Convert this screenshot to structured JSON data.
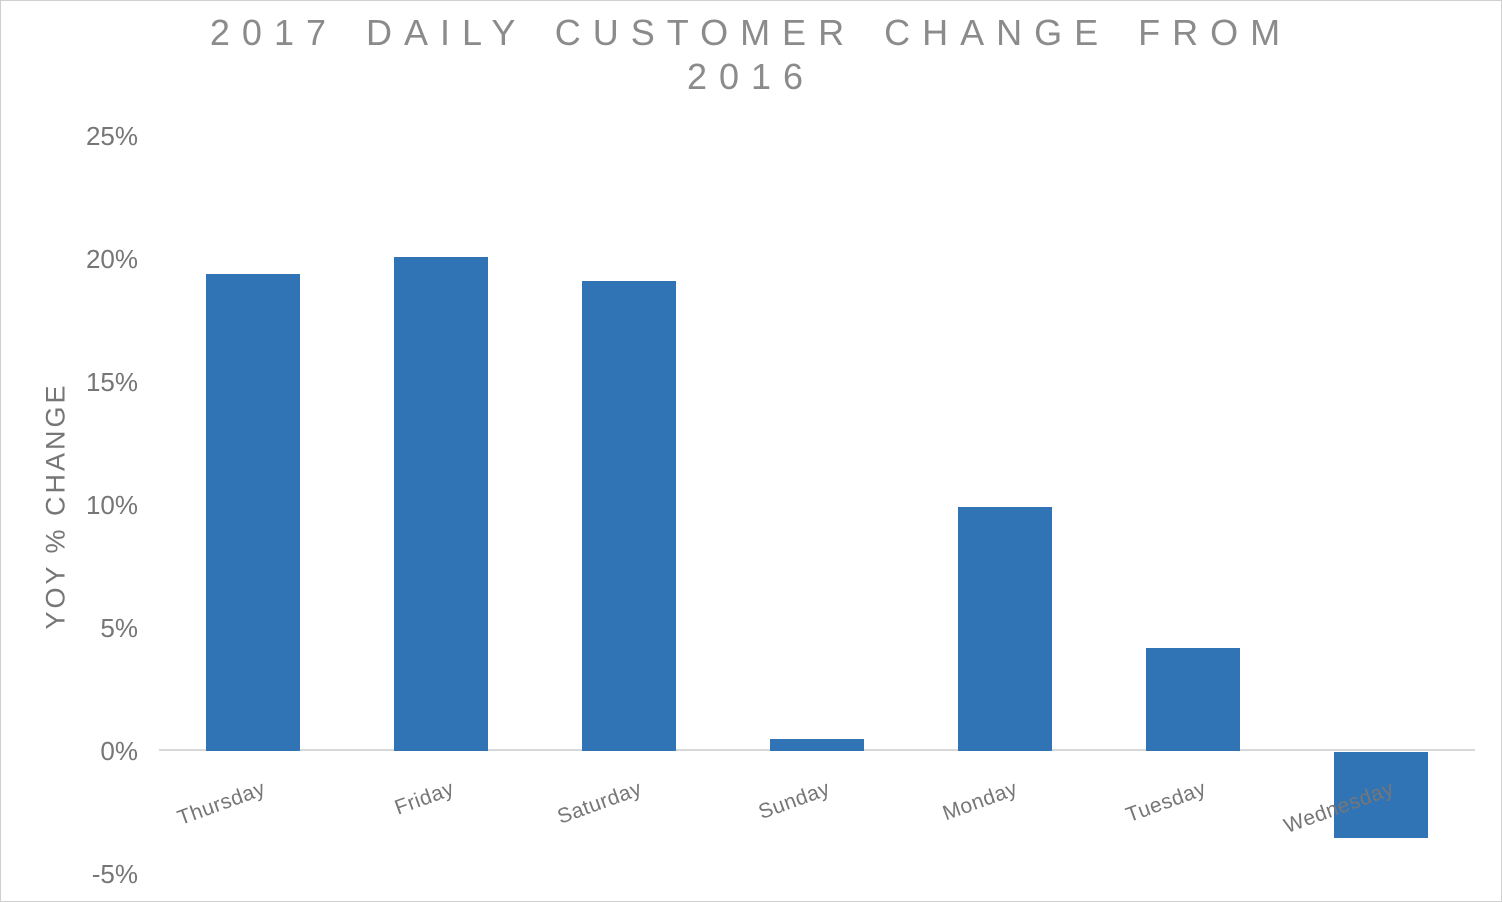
{
  "chart_data": {
    "type": "bar",
    "title": "2017 DAILY CUSTOMER CHANGE FROM 2016",
    "title_lines": [
      "2017 DAILY CUSTOMER CHANGE FROM",
      "2016"
    ],
    "ylabel": "YOY % CHANGE",
    "xlabel": "",
    "categories": [
      "Thursday",
      "Friday",
      "Saturday",
      "Sunday",
      "Monday",
      "Tuesday",
      "Wednesday"
    ],
    "values": [
      19.4,
      20.1,
      19.1,
      0.5,
      9.9,
      4.2,
      -3.5
    ],
    "series": [
      {
        "name": "2017 daily customer % change vs 2016",
        "values": [
          19.4,
          20.1,
          19.1,
          0.5,
          9.9,
          4.2,
          -3.5
        ]
      }
    ],
    "ylim": [
      -5,
      25
    ],
    "yticks": [
      {
        "value": 25,
        "label": "25%"
      },
      {
        "value": 20,
        "label": "20%"
      },
      {
        "value": 15,
        "label": "15%"
      },
      {
        "value": 10,
        "label": "10%"
      },
      {
        "value": 5,
        "label": "5%"
      },
      {
        "value": 0,
        "label": "0%"
      },
      {
        "value": -5,
        "label": "-5%"
      }
    ],
    "layout": {
      "grid": false,
      "legend": false,
      "xtick_rotation_deg": -20,
      "bar_width_ratio": 0.5,
      "zero_axis_line_only": true
    },
    "colors": {
      "bar": "#3074B5",
      "title": "#8B8B8B",
      "axis_text": "#767676",
      "axis_line": "#D9D9D9",
      "border": "#CFCFCF",
      "background": "#FFFFFF"
    }
  }
}
